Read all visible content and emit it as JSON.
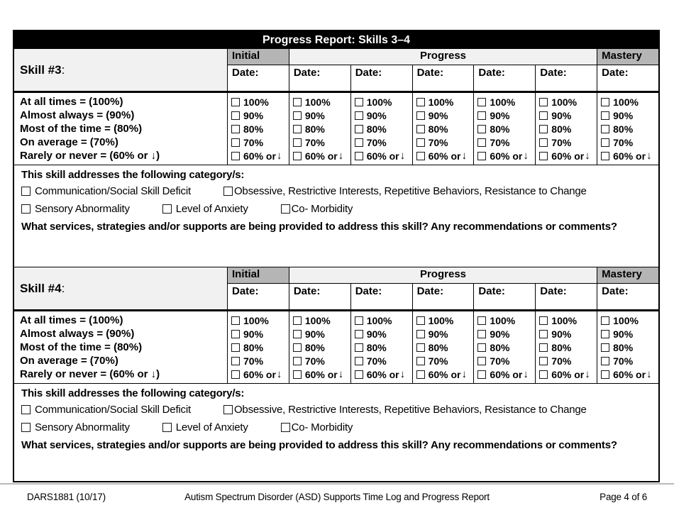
{
  "title": "Progress Report: Skills 3–4",
  "skill_colon": ":",
  "table_header": {
    "initial": "Initial",
    "progress": "Progress",
    "mastery": "Mastery",
    "date_label": "Date:"
  },
  "rating_scale_labels": [
    "At all times = (100%)",
    "Almost always = (90%)",
    "Most of the time = (80%)",
    "On average = (70%)",
    "Rarely or never = (60% or ↓)"
  ],
  "percent_options": [
    {
      "label": "100%",
      "arrow": ""
    },
    {
      "label": "90%",
      "arrow": ""
    },
    {
      "label": "80%",
      "arrow": ""
    },
    {
      "label": "70%",
      "arrow": ""
    },
    {
      "label": "60% or",
      "arrow": "↓"
    }
  ],
  "sections": [
    {
      "label": "Skill #3",
      "date_values": [
        "",
        "",
        "",
        "",
        "",
        "",
        ""
      ]
    },
    {
      "label": "Skill #4",
      "date_values": [
        "",
        "",
        "",
        "",
        "",
        "",
        ""
      ]
    }
  ],
  "category_block": {
    "prompt": "This skill addresses the following category/s:",
    "rows": [
      [
        "Communication/Social Skill Deficit",
        "Obsessive, Restrictive Interests, Repetitive Behaviors, Resistance to Change"
      ],
      [
        "Sensory Abnormality",
        "Level of Anxiety",
        "Co- Morbidity"
      ]
    ],
    "services_prompt": "What services, strategies and/or supports are being provided to address this skill? Any recommendations or comments?"
  },
  "footer": {
    "left": "DARS1881 (10/17)",
    "center": "Autism Spectrum Disorder (ASD) Supports Time Log and Progress Report",
    "right": "Page 4 of 6"
  }
}
